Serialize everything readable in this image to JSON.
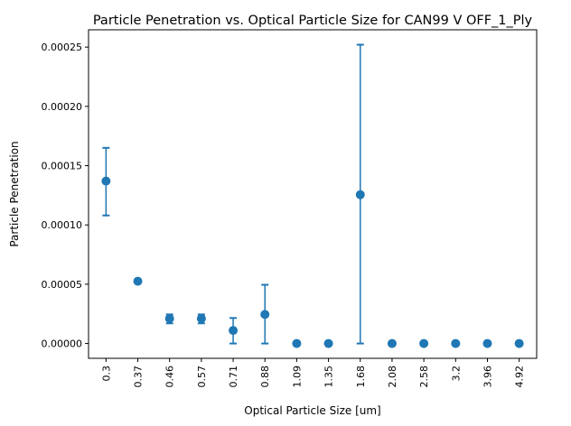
{
  "chart_data": {
    "type": "scatter",
    "title": "Particle Penetration vs. Optical Particle Size for CAN99 V OFF_1_Ply",
    "xlabel": "Optical Particle Size [um]",
    "ylabel": "Particle Penetration",
    "categories": [
      "0.3",
      "0.37",
      "0.46",
      "0.57",
      "0.71",
      "0.88",
      "1.09",
      "1.35",
      "1.68",
      "2.08",
      "2.58",
      "3.2",
      "3.96",
      "4.92"
    ],
    "values": [
      0.000137,
      5.25e-05,
      2.1e-05,
      2.1e-05,
      1.1e-05,
      2.45e-05,
      0,
      0,
      0.0001255,
      0,
      0,
      0,
      0,
      0
    ],
    "error_low": [
      0.000108,
      null,
      1.7e-05,
      1.7e-05,
      0.0,
      0.0,
      null,
      null,
      0.0,
      null,
      null,
      null,
      null,
      null
    ],
    "error_high": [
      0.000165,
      null,
      2.45e-05,
      2.45e-05,
      2.15e-05,
      4.95e-05,
      null,
      null,
      0.000252,
      null,
      null,
      null,
      null,
      null
    ],
    "yticks": [
      0,
      5e-05,
      0.0001,
      0.00015,
      0.0002,
      0.00025
    ],
    "ytick_labels": [
      "0.00000",
      "0.00005",
      "0.00010",
      "0.00015",
      "0.00020",
      "0.00025"
    ],
    "ylim": [
      -1.25e-05,
      0.0002646
    ],
    "grid": false,
    "color": "#1f77b4"
  }
}
